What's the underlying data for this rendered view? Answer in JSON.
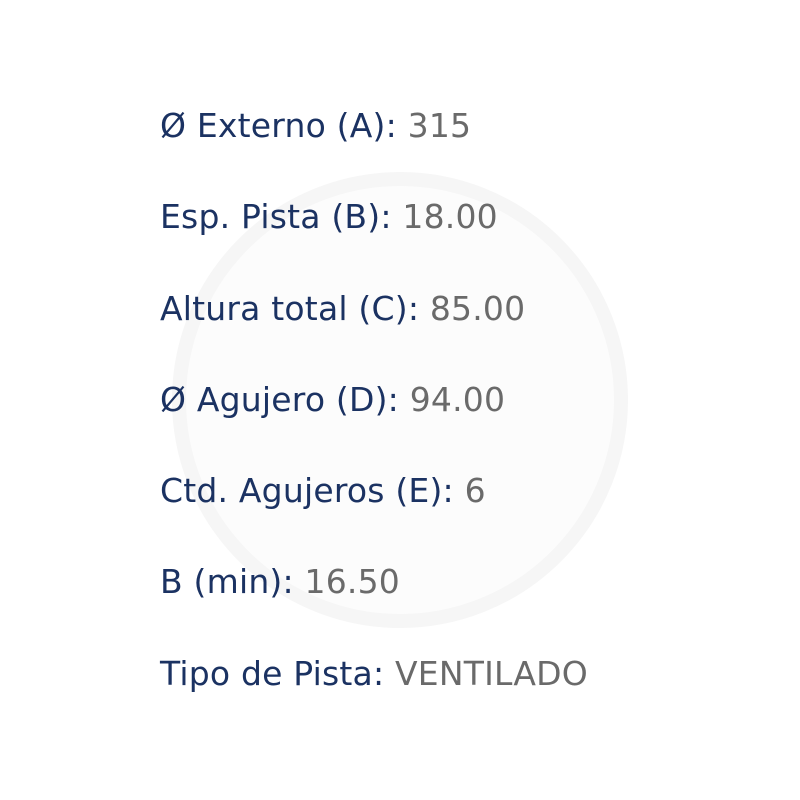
{
  "specs": [
    {
      "label": "Ø Externo (A):",
      "value": "315"
    },
    {
      "label": "Esp. Pista (B):",
      "value": "18.00"
    },
    {
      "label": "Altura total (C):",
      "value": "85.00"
    },
    {
      "label": "Ø Agujero (D):",
      "value": "94.00"
    },
    {
      "label": "Ctd. Agujeros (E):",
      "value": "6"
    },
    {
      "label": "B (min):",
      "value": "16.50"
    },
    {
      "label": "Tipo de Pista:",
      "value": "VENTILADO"
    }
  ],
  "colors": {
    "label": "#1b3262",
    "value": "#6a6a6a",
    "watermark": "#f6f6f6"
  }
}
